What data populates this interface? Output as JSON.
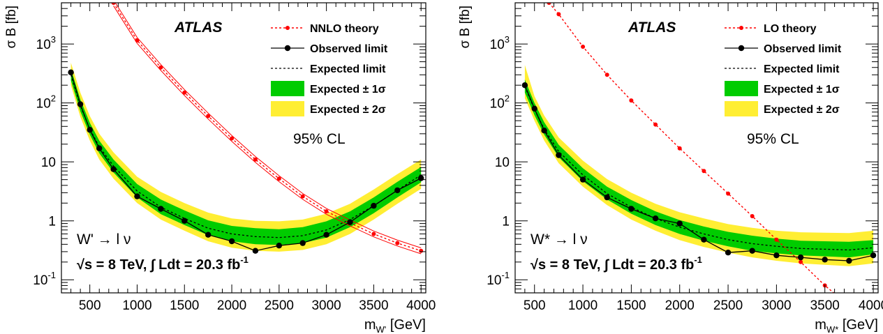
{
  "chart_data": [
    {
      "type": "line",
      "scale": "log-y",
      "experiment": "ATLAS",
      "ylabel": "σ B [fb]",
      "xlabel_main": "m",
      "xlabel_sub": "W'",
      "xlabel_unit": " [GeV]",
      "xlim": [
        200,
        4050
      ],
      "ylim": [
        0.06,
        5000
      ],
      "x_ticks": [
        "500",
        "1000",
        "1500",
        "2000",
        "2500",
        "3000",
        "3500",
        "4000"
      ],
      "y_ticks": [
        {
          "label": "10",
          "sup": "-1"
        },
        {
          "label": "1",
          "sup": ""
        },
        {
          "label": "10",
          "sup": ""
        },
        {
          "label": "10",
          "sup": "2"
        },
        {
          "label": "10",
          "sup": "3"
        }
      ],
      "cl_label": "95% CL",
      "process_label": "W' → l ν",
      "energy_label": "√s = 8 TeV,  ∫ Ldt = 20.3 fb",
      "energy_sup": "-1",
      "legend": {
        "theory": "NNLO theory",
        "observed": "Observed limit",
        "expected": "Expected  limit",
        "sigma1": "Expected ± 1σ",
        "sigma2": "Expected ± 2σ"
      },
      "colors": {
        "theory": "#ff0000",
        "sigma1": "#00cc00",
        "sigma2": "#ffee33",
        "observed": "#000000"
      },
      "series": [
        {
          "role": "theory",
          "x": [
            750,
            1000,
            1250,
            1500,
            1750,
            2000,
            2250,
            2500,
            2750,
            3000,
            3250,
            3500,
            3750,
            4000
          ],
          "values": [
            5000,
            1150,
            400,
            150,
            60,
            25,
            11,
            5.2,
            2.6,
            1.45,
            0.92,
            0.6,
            0.42,
            0.31
          ]
        },
        {
          "role": "observed",
          "x": [
            300,
            400,
            500,
            600,
            750,
            1000,
            1250,
            1500,
            1750,
            2000,
            2250,
            2500,
            2750,
            3000,
            3250,
            3500,
            3750,
            4000
          ],
          "values": [
            330,
            95,
            35,
            17,
            7.5,
            2.6,
            1.6,
            1.0,
            0.58,
            0.45,
            0.31,
            0.38,
            0.42,
            0.58,
            0.95,
            1.8,
            3.3,
            5.3
          ]
        },
        {
          "role": "expected",
          "x": [
            300,
            400,
            500,
            600,
            750,
            1000,
            1250,
            1500,
            1750,
            2000,
            2250,
            2500,
            2750,
            3000,
            3250,
            3500,
            3750,
            4000
          ],
          "values": [
            300,
            90,
            36,
            18,
            8.5,
            3.2,
            1.7,
            1.1,
            0.75,
            0.6,
            0.54,
            0.52,
            0.56,
            0.7,
            1.05,
            1.8,
            3.3,
            6.0
          ],
          "band1_lo": [
            240,
            72,
            29,
            14,
            6.6,
            2.5,
            1.3,
            0.85,
            0.57,
            0.45,
            0.4,
            0.39,
            0.42,
            0.52,
            0.78,
            1.35,
            2.5,
            4.5
          ],
          "band1_hi": [
            380,
            115,
            46,
            23,
            11,
            4.2,
            2.3,
            1.5,
            1.02,
            0.82,
            0.75,
            0.72,
            0.78,
            0.98,
            1.45,
            2.5,
            4.6,
            8.2
          ],
          "band2_lo": [
            200,
            58,
            23,
            11,
            5.2,
            2.0,
            1.05,
            0.68,
            0.45,
            0.35,
            0.31,
            0.3,
            0.32,
            0.4,
            0.6,
            1.05,
            1.95,
            3.5
          ],
          "band2_hi": [
            480,
            150,
            60,
            30,
            14.5,
            5.6,
            3.1,
            2.0,
            1.38,
            1.1,
            1.0,
            0.98,
            1.05,
            1.32,
            1.95,
            3.4,
            6.2,
            11
          ]
        }
      ]
    },
    {
      "type": "line",
      "scale": "log-y",
      "experiment": "ATLAS",
      "ylabel": "σ B [fb]",
      "xlabel_main": "m",
      "xlabel_sub": "W*",
      "xlabel_unit": " [GeV]",
      "xlim": [
        300,
        4050
      ],
      "ylim": [
        0.06,
        5000
      ],
      "x_ticks": [
        "500",
        "1000",
        "1500",
        "2000",
        "2500",
        "3000",
        "3500",
        "4000"
      ],
      "y_ticks": [
        {
          "label": "10",
          "sup": "-1"
        },
        {
          "label": "1",
          "sup": ""
        },
        {
          "label": "10",
          "sup": ""
        },
        {
          "label": "10",
          "sup": "2"
        },
        {
          "label": "10",
          "sup": "3"
        }
      ],
      "cl_label": "95% CL",
      "process_label": "W* → l ν",
      "energy_label": "√s = 8 TeV,  ∫ Ldt = 20.3 fb",
      "energy_sup": "-1",
      "legend": {
        "theory": "LO theory",
        "observed": "Observed limit",
        "expected": "Expected  limit",
        "sigma1": "Expected ± 1σ",
        "sigma2": "Expected ± 2σ"
      },
      "colors": {
        "theory": "#ff0000",
        "sigma1": "#00cc00",
        "sigma2": "#ffee33",
        "observed": "#000000"
      },
      "series": [
        {
          "role": "theory",
          "x": [
            650,
            750,
            1000,
            1250,
            1500,
            1750,
            2000,
            2250,
            2500,
            2750,
            3000,
            3250,
            3500,
            3650
          ],
          "values": [
            5000,
            3200,
            900,
            300,
            110,
            43,
            17,
            7.0,
            2.9,
            1.2,
            0.48,
            0.2,
            0.08,
            0.05
          ]
        },
        {
          "role": "observed",
          "x": [
            400,
            500,
            600,
            750,
            1000,
            1250,
            1500,
            1750,
            2000,
            2250,
            2500,
            2750,
            3000,
            3250,
            3500,
            3750,
            4000
          ],
          "values": [
            200,
            80,
            34,
            13,
            5.0,
            2.5,
            1.6,
            1.1,
            0.9,
            0.48,
            0.29,
            0.31,
            0.26,
            0.24,
            0.22,
            0.21,
            0.26
          ]
        },
        {
          "role": "expected",
          "x": [
            400,
            500,
            600,
            750,
            1000,
            1250,
            1500,
            1750,
            2000,
            2250,
            2500,
            2750,
            3000,
            3250,
            3500,
            3750,
            4000
          ],
          "values": [
            190,
            78,
            36,
            15,
            6.0,
            2.9,
            1.7,
            1.1,
            0.78,
            0.6,
            0.48,
            0.41,
            0.37,
            0.34,
            0.33,
            0.32,
            0.35
          ],
          "band1_lo": [
            150,
            62,
            29,
            12,
            4.7,
            2.3,
            1.32,
            0.85,
            0.6,
            0.46,
            0.37,
            0.31,
            0.28,
            0.26,
            0.25,
            0.24,
            0.27
          ],
          "band1_hi": [
            250,
            100,
            47,
            19.5,
            7.8,
            3.8,
            2.25,
            1.45,
            1.03,
            0.8,
            0.65,
            0.56,
            0.5,
            0.46,
            0.45,
            0.44,
            0.47
          ],
          "band2_lo": [
            120,
            50,
            23,
            9.5,
            3.8,
            1.85,
            1.05,
            0.68,
            0.47,
            0.36,
            0.29,
            0.24,
            0.21,
            0.19,
            0.18,
            0.17,
            0.19
          ],
          "band2_hi": [
            440,
            130,
            61,
            26,
            10.5,
            5.1,
            3.0,
            1.95,
            1.4,
            1.1,
            0.88,
            0.76,
            0.68,
            0.64,
            0.63,
            0.62,
            0.68
          ]
        }
      ]
    }
  ]
}
